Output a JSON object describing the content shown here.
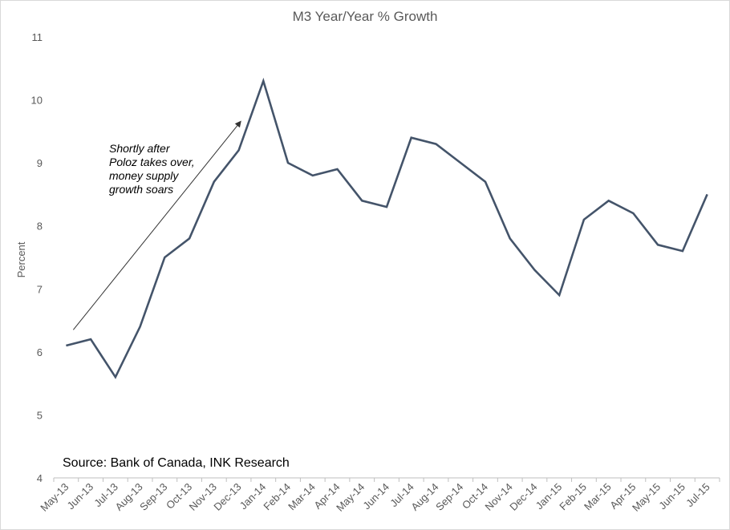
{
  "chart_data": {
    "type": "line",
    "title": "M3 Year/Year % Growth",
    "ylabel": "Percent",
    "xlabel": "",
    "ylim": [
      4,
      11
    ],
    "yticks": [
      "4",
      "5",
      "6",
      "7",
      "8",
      "9",
      "10",
      "11"
    ],
    "grid": false,
    "legend": "none",
    "line_color": "#44546a",
    "categories": [
      "May-13",
      "Jun-13",
      "Jul-13",
      "Aug-13",
      "Sep-13",
      "Oct-13",
      "Nov-13",
      "Dec-13",
      "Jan-14",
      "Feb-14",
      "Mar-14",
      "Apr-14",
      "May-14",
      "Jun-14",
      "Jul-14",
      "Aug-14",
      "Sep-14",
      "Oct-14",
      "Nov-14",
      "Dec-14",
      "Jan-15",
      "Feb-15",
      "Mar-15",
      "Apr-15",
      "May-15",
      "Jun-15",
      "Jul-15"
    ],
    "series": [
      {
        "values": [
          6.1,
          6.2,
          5.6,
          6.4,
          7.5,
          7.8,
          8.7,
          9.2,
          10.3,
          9.0,
          8.8,
          8.9,
          8.4,
          8.3,
          9.4,
          9.3,
          9.0,
          8.7,
          7.8,
          7.3,
          6.9,
          8.1,
          8.4,
          8.2,
          7.7,
          7.6,
          8.5
        ]
      }
    ],
    "annotation": {
      "lines": [
        "Shortly after",
        "Poloz takes over,",
        "money supply",
        "growth soars"
      ],
      "arrow_from": {
        "category": "May-13",
        "value": 6.35
      },
      "arrow_to": {
        "category": "Dec-13",
        "value": 9.65
      }
    },
    "source": "Source: Bank of Canada, INK Research"
  }
}
